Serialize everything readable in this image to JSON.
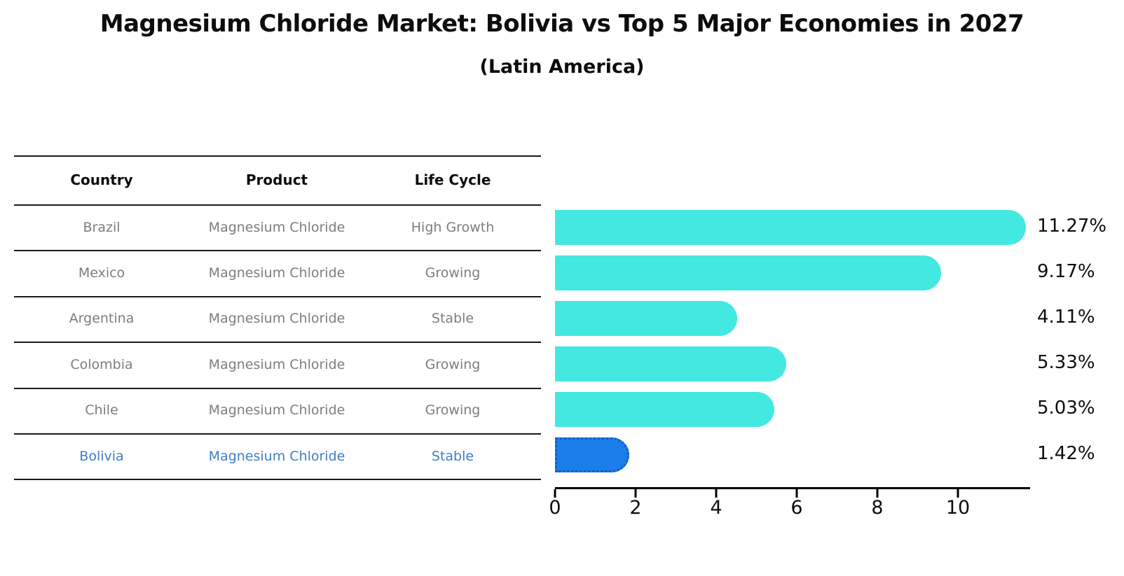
{
  "title": "Magnesium Chloride Market: Bolivia vs Top 5 Major Economies in 2027",
  "subtitle": "(Latin America)",
  "table": {
    "headers": [
      "Country",
      "Product",
      "Life Cycle"
    ],
    "rows": [
      {
        "country": "Brazil",
        "product": "Magnesium Chloride",
        "life_cycle": "High Growth",
        "highlighted": false
      },
      {
        "country": "Mexico",
        "product": "Magnesium Chloride",
        "life_cycle": "Growing",
        "highlighted": false
      },
      {
        "country": "Argentina",
        "product": "Magnesium Chloride",
        "life_cycle": "Stable",
        "highlighted": false
      },
      {
        "country": "Colombia",
        "product": "Magnesium Chloride",
        "life_cycle": "Growing",
        "highlighted": false
      },
      {
        "country": "Chile",
        "product": "Magnesium Chloride",
        "life_cycle": "Growing",
        "highlighted": false
      },
      {
        "country": "Bolivia",
        "product": "Magnesium Chloride",
        "life_cycle": "Stable",
        "highlighted": true
      }
    ]
  },
  "chart_data": {
    "type": "bar",
    "orientation": "horizontal",
    "categories": [
      "Brazil",
      "Mexico",
      "Argentina",
      "Colombia",
      "Chile",
      "Bolivia"
    ],
    "values": [
      11.27,
      9.17,
      4.11,
      5.33,
      5.03,
      1.42
    ],
    "value_labels": [
      "11.27%",
      "9.17%",
      "4.11%",
      "5.33%",
      "5.03%",
      "1.42%"
    ],
    "x_ticks": [
      "0",
      "2",
      "4",
      "6",
      "8",
      "10"
    ],
    "x_tick_values": [
      0,
      2,
      4,
      6,
      8,
      10
    ],
    "xlim": [
      0,
      11.8
    ],
    "grid": false,
    "legend": false,
    "bar_color": "#43e8e1",
    "highlight_bar_color": "#1b7ee8",
    "highlight_border_color": "#0e5fc0",
    "highlight_text_color": "#3f7ec4",
    "row_text_color": "#7d7d7d",
    "title_color": "#0d0d0d",
    "highlight_index": 5
  }
}
